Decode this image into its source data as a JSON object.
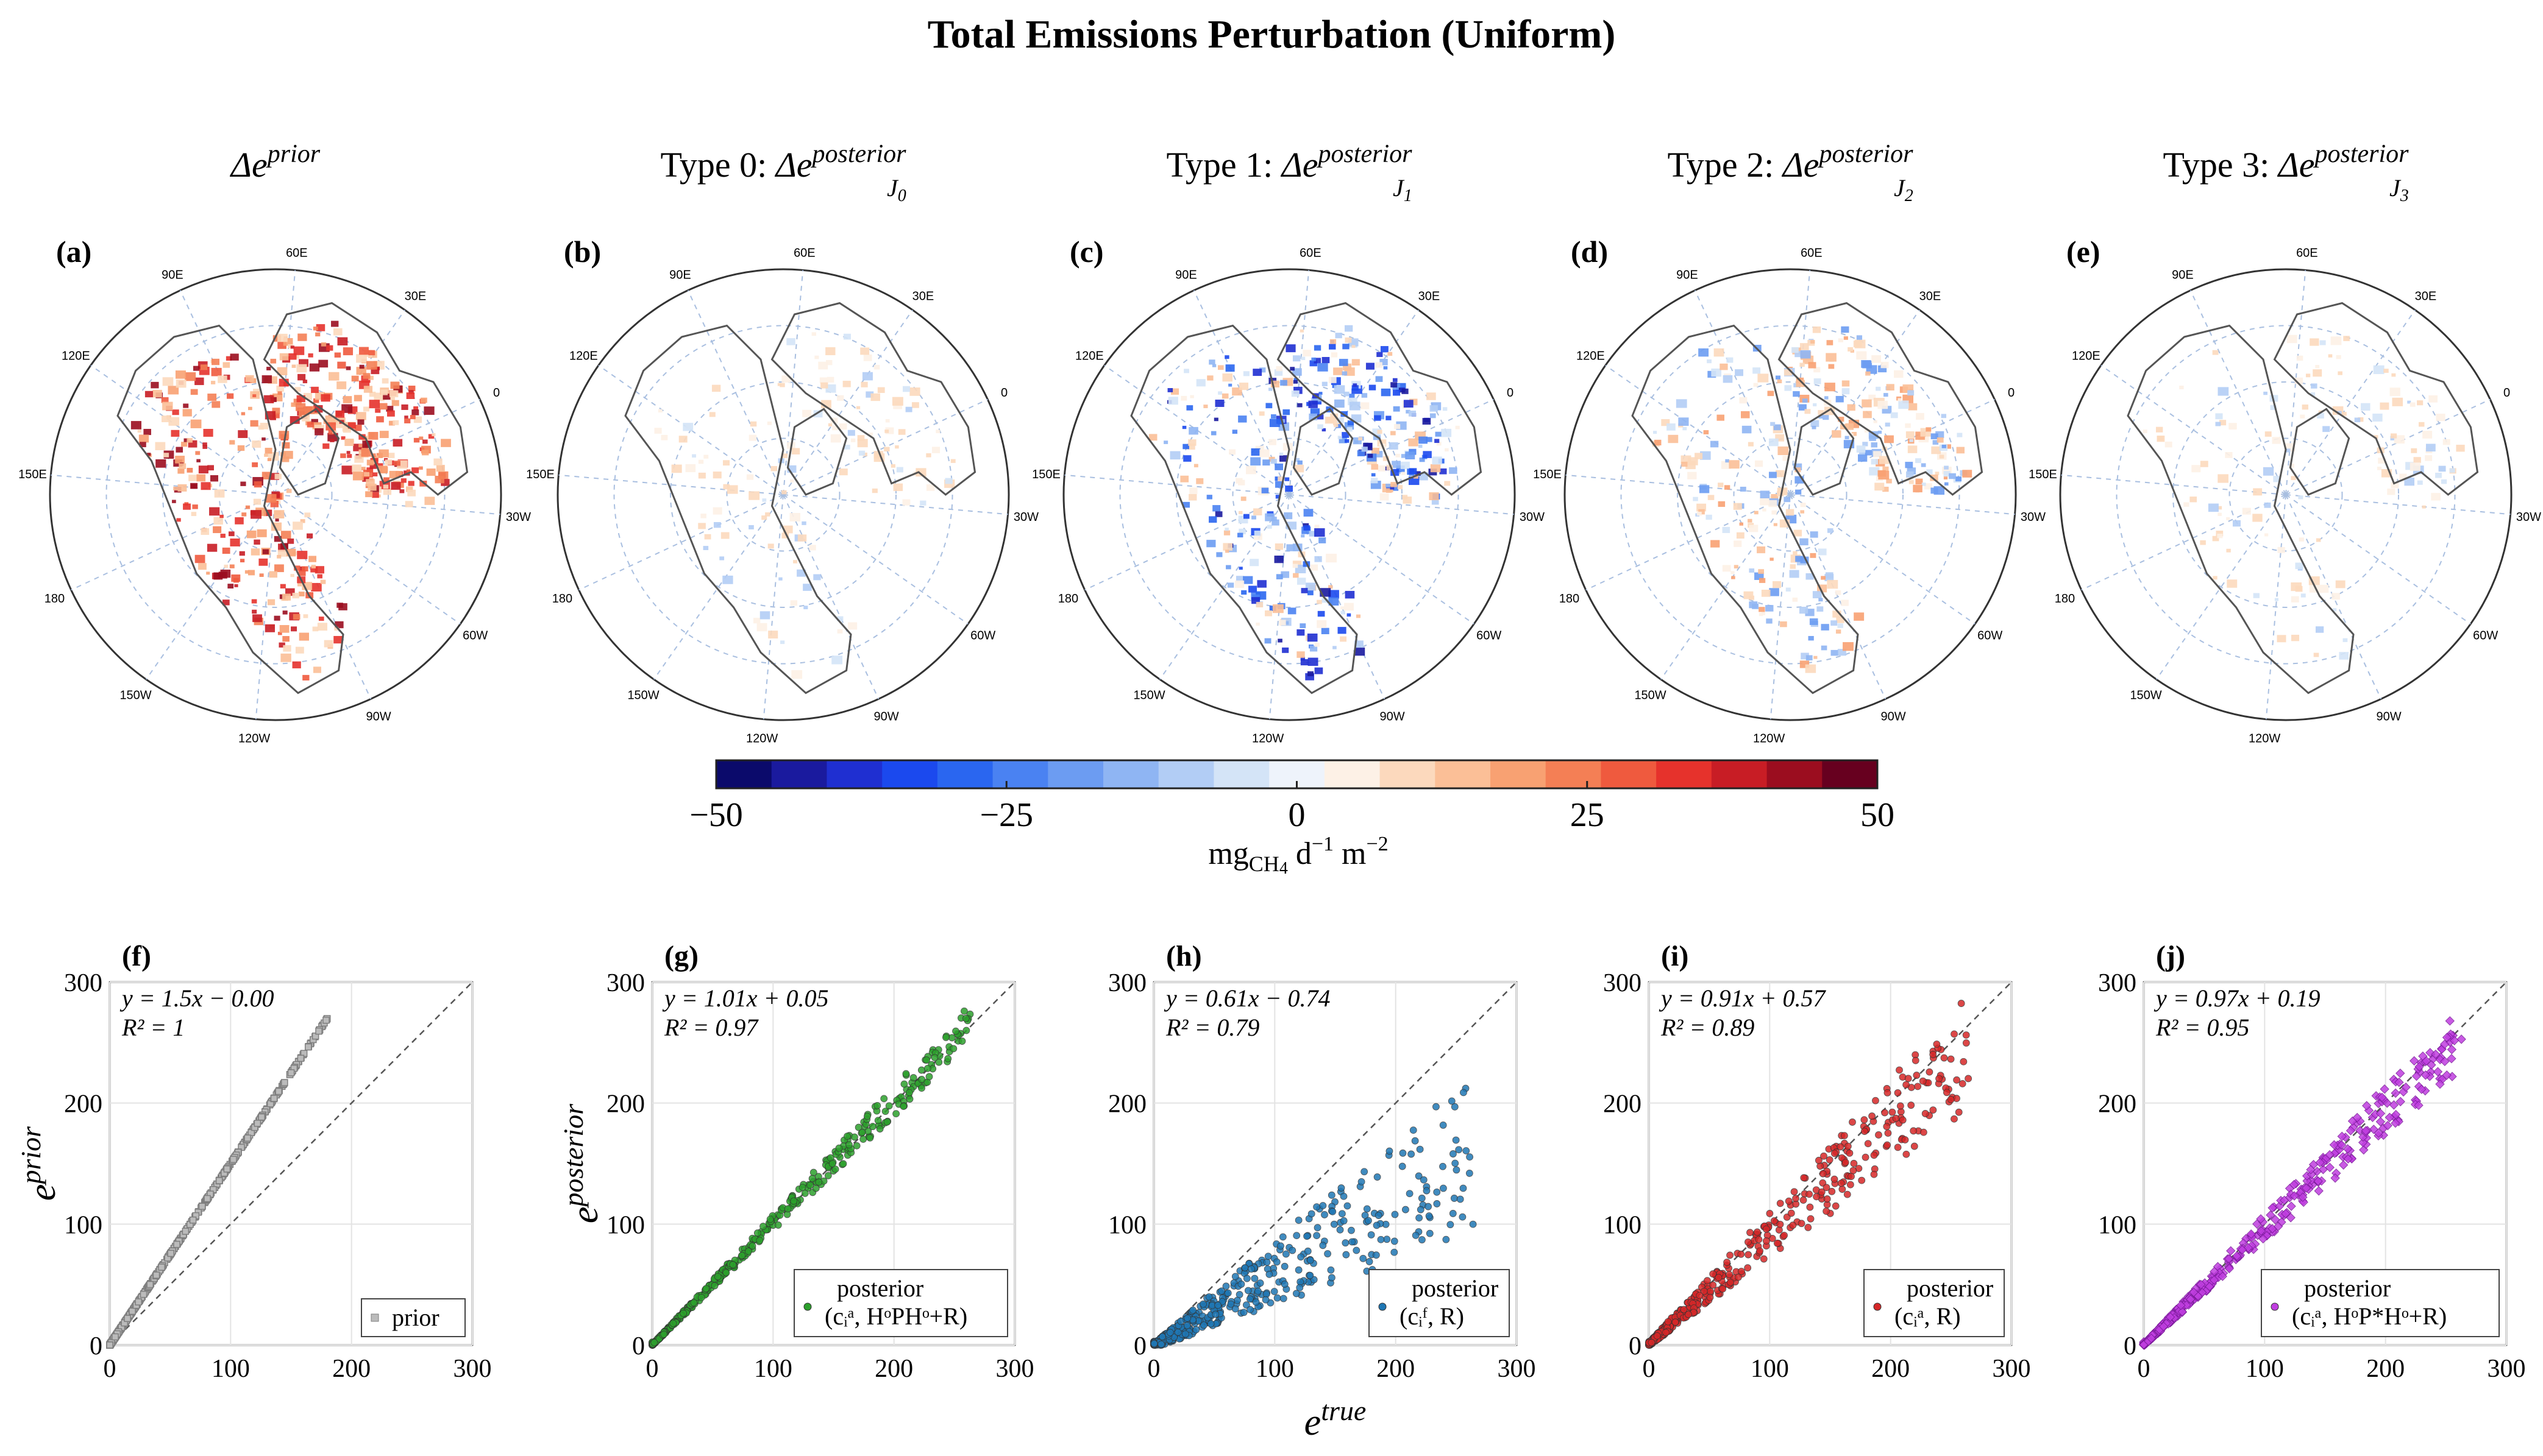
{
  "figure_title": "Total Emissions Perturbation (Uniform)",
  "colors": {
    "prior": "#7f7f7f",
    "type0": "#2ca02c",
    "type1": "#1f77b4",
    "type2": "#d62728",
    "type3": "#c03ee0",
    "coast": "#555555",
    "grid": "#a9bfe0"
  },
  "maps": [
    {
      "letter": "(a)",
      "title_pre": "",
      "title_base": "Δe",
      "title_sup": "prior",
      "title_sub": "",
      "sub_main": "",
      "fill": "red-strong"
    },
    {
      "letter": "(b)",
      "title_pre": "Type 0:",
      "title_base": "Δe",
      "title_sup": "posterior",
      "title_sub": "J",
      "sub_main": "0",
      "fill": "faint"
    },
    {
      "letter": "(c)",
      "title_pre": "Type 1:",
      "title_base": "Δe",
      "title_sup": "posterior",
      "title_sub": "J",
      "sub_main": "1",
      "fill": "blue-strong"
    },
    {
      "letter": "(d)",
      "title_pre": "Type 2:",
      "title_base": "Δe",
      "title_sup": "posterior",
      "title_sub": "J",
      "sub_main": "2",
      "fill": "mixed"
    },
    {
      "letter": "(e)",
      "title_pre": "Type 3:",
      "title_base": "Δe",
      "title_sup": "posterior",
      "title_sub": "J",
      "sub_main": "3",
      "fill": "faint"
    }
  ],
  "map_lon_labels": [
    "90E",
    "60E",
    "30E",
    "0",
    "30W",
    "60W",
    "90W",
    "120W",
    "150W",
    "180",
    "150E",
    "120E"
  ],
  "colorbar": {
    "ticks": [
      "−50",
      "−25",
      "0",
      "25",
      "50"
    ],
    "tick_values": [
      -50,
      -25,
      0,
      25,
      50
    ],
    "range": [
      -50,
      50
    ],
    "label_main": "mg",
    "label_sub": "CH",
    "label_sub2": "4",
    "label_rest": " d",
    "label_exp1": "−1",
    "label_mid": " m",
    "label_exp2": "−2",
    "colors": [
      "#0b0a6b",
      "#1a1a9e",
      "#1f2fd1",
      "#1b49ee",
      "#2a66f0",
      "#4a82f2",
      "#6c9cf2",
      "#8fb5f3",
      "#b2cdf5",
      "#d4e4f7",
      "#eef3fb",
      "#fdf1e6",
      "#fcd9bd",
      "#fbbf97",
      "#f8a172",
      "#f47f55",
      "#ef5a3e",
      "#e6322c",
      "#c81d25",
      "#9b0d1f",
      "#67001f"
    ]
  },
  "chart_data": [
    {
      "letter": "(f)",
      "type": "scatter",
      "equation": "y = 1.5x − 0.00",
      "r2": "R² = 1",
      "ylabel_base": "e",
      "ylabel_sup": "prior",
      "legend": [
        "prior"
      ],
      "slope": 1.5,
      "intercept": 0.0,
      "xlim": [
        0,
        300
      ],
      "ylim": [
        0,
        300
      ],
      "xticks": [
        0,
        100,
        200,
        300
      ],
      "yticks": [
        0,
        100,
        200,
        300
      ],
      "x_max_data": 180,
      "spread": 0.0,
      "color_key": "prior",
      "marker": "square"
    },
    {
      "letter": "(g)",
      "type": "scatter",
      "equation": "y = 1.01x + 0.05",
      "r2": "R² = 0.97",
      "ylabel_base": "e",
      "ylabel_sup": "posterior",
      "legend": [
        "posterior",
        "(cᵢᵃ, HᵒPHᵒ+R)"
      ],
      "slope": 1.01,
      "intercept": 0.05,
      "xlim": [
        0,
        300
      ],
      "ylim": [
        0,
        300
      ],
      "xticks": [
        0,
        100,
        200,
        300
      ],
      "yticks": [
        0,
        100,
        200,
        300
      ],
      "x_max_data": 265,
      "spread": 0.06,
      "color_key": "type0",
      "marker": "circle"
    },
    {
      "letter": "(h)",
      "type": "scatter",
      "equation": "y = 0.61x − 0.74",
      "r2": "R² = 0.79",
      "xlabel_base": "e",
      "xlabel_sup": "true",
      "legend": [
        "posterior",
        "(cᵢᶠ, R)"
      ],
      "slope": 0.61,
      "intercept": -0.74,
      "xlim": [
        0,
        300
      ],
      "ylim": [
        0,
        300
      ],
      "xticks": [
        0,
        100,
        200,
        300
      ],
      "yticks": [
        0,
        100,
        200,
        300
      ],
      "x_max_data": 265,
      "spread": 0.25,
      "color_key": "type1",
      "marker": "circle"
    },
    {
      "letter": "(i)",
      "type": "scatter",
      "equation": "y = 0.91x + 0.57",
      "r2": "R² = 0.89",
      "legend": [
        "posterior",
        "(cᵢᵃ, R)"
      ],
      "slope": 0.91,
      "intercept": 0.57,
      "xlim": [
        0,
        300
      ],
      "ylim": [
        0,
        300
      ],
      "xticks": [
        0,
        100,
        200,
        300
      ],
      "yticks": [
        0,
        100,
        200,
        300
      ],
      "x_max_data": 265,
      "spread": 0.18,
      "color_key": "type2",
      "marker": "circle"
    },
    {
      "letter": "(j)",
      "type": "scatter",
      "equation": "y = 0.97x + 0.19",
      "r2": "R² = 0.95",
      "legend": [
        "posterior",
        "(cᵢᵃ, HᵒP*Hᵒ+R)"
      ],
      "slope": 0.97,
      "intercept": 0.19,
      "xlim": [
        0,
        300
      ],
      "ylim": [
        0,
        300
      ],
      "xticks": [
        0,
        100,
        200,
        300
      ],
      "yticks": [
        0,
        100,
        200,
        300
      ],
      "x_max_data": 265,
      "spread": 0.1,
      "color_key": "type3",
      "marker": "diamond"
    }
  ]
}
